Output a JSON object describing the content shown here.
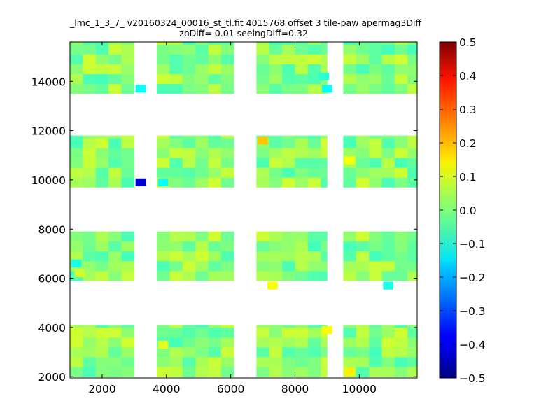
{
  "chart_data": {
    "type": "heatmap",
    "title_line1": "_lmc_1_3_7_ v20160324_00016_st_tl.fit 4015768 offset 3 tile-paw apermag3Diff",
    "title_line2": "zpDiff= 0.01 seeingDiff=0.32",
    "xlabel": "",
    "ylabel": "",
    "xlim": [
      1000,
      11800
    ],
    "ylim": [
      1950,
      15600
    ],
    "x_ticks": [
      "2000",
      "4000",
      "6000",
      "8000",
      "10000"
    ],
    "x_tick_values": [
      2000,
      4000,
      6000,
      8000,
      10000
    ],
    "y_ticks": [
      "2000",
      "4000",
      "6000",
      "8000",
      "10000",
      "12000",
      "14000"
    ],
    "y_tick_values": [
      2000,
      4000,
      6000,
      8000,
      10000,
      12000,
      14000
    ],
    "colorbar": {
      "min": -0.5,
      "max": 0.5,
      "ticks": [
        "0.5",
        "0.4",
        "0.3",
        "0.2",
        "0.1",
        "0.0",
        "−0.1",
        "−0.2",
        "−0.3",
        "−0.4",
        "−0.5"
      ],
      "tick_values": [
        0.5,
        0.4,
        0.3,
        0.2,
        0.1,
        0.0,
        -0.1,
        -0.2,
        -0.3,
        -0.4,
        -0.5
      ],
      "colormap": "jet"
    },
    "cell_size": {
      "dx": 400,
      "dy": 400
    },
    "detector_columns": [
      {
        "x0": 1000,
        "x1": 3000
      },
      {
        "x0": 3700,
        "x1": 6100
      },
      {
        "x0": 6800,
        "x1": 9000
      },
      {
        "x0": 9500,
        "x1": 11800
      }
    ],
    "detector_rows": [
      {
        "y0": 2000,
        "y1": 4100
      },
      {
        "y0": 5900,
        "y1": 7900
      },
      {
        "y0": 9700,
        "y1": 11800
      },
      {
        "y0": 13500,
        "y1": 15600
      }
    ],
    "outliers": [
      {
        "x": 3200,
        "y": 13700,
        "value": -0.12
      },
      {
        "x": 3200,
        "y": 9900,
        "value": -0.42
      },
      {
        "x": 3900,
        "y": 9900,
        "value": -0.12
      },
      {
        "x": 7000,
        "y": 11600,
        "value": 0.18
      },
      {
        "x": 9700,
        "y": 10800,
        "value": 0.12
      },
      {
        "x": 7300,
        "y": 5700,
        "value": 0.12
      },
      {
        "x": 10900,
        "y": 5700,
        "value": -0.1
      },
      {
        "x": 9000,
        "y": 3900,
        "value": 0.12
      },
      {
        "x": 9700,
        "y": 2200,
        "value": 0.14
      },
      {
        "x": 1200,
        "y": 6600,
        "value": -0.1
      },
      {
        "x": 1300,
        "y": 6200,
        "value": 0.08
      },
      {
        "x": 8900,
        "y": 14200,
        "value": -0.08
      },
      {
        "x": 9000,
        "y": 13700,
        "value": -0.12
      },
      {
        "x": 3900,
        "y": 3300,
        "value": 0.1
      }
    ],
    "typical_value_range": [
      -0.06,
      0.08
    ]
  }
}
